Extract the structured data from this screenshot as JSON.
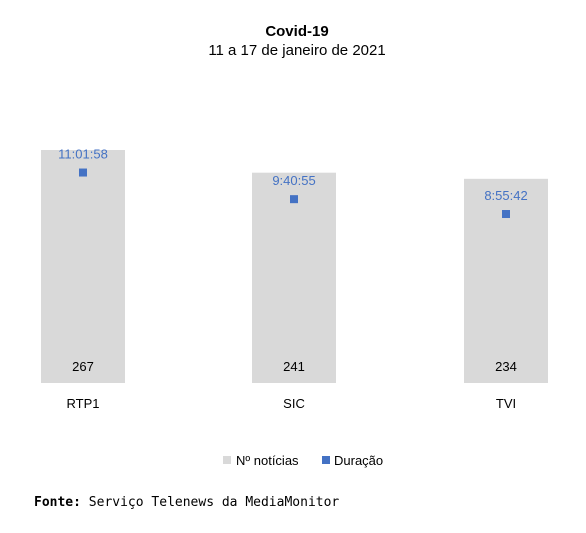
{
  "chart_data": {
    "type": "bar",
    "title": "Covid-19",
    "subtitle": "11 a 17 de janeiro de 2021",
    "categories": [
      "RTP1",
      "SIC",
      "TVI"
    ],
    "series": [
      {
        "name": "Nº notícias",
        "type": "bar",
        "values": [
          267,
          241,
          234
        ],
        "color": "#d9d9d9"
      },
      {
        "name": "Duração",
        "type": "scatter",
        "values": [
          "11:01:58",
          "9:40:55",
          "8:55:42"
        ],
        "color": "#4472c4"
      }
    ],
    "legend_position": "bottom",
    "grid": false
  },
  "source": {
    "label": "Fonte",
    "text": "Serviço Telenews da MediaMonitor"
  }
}
